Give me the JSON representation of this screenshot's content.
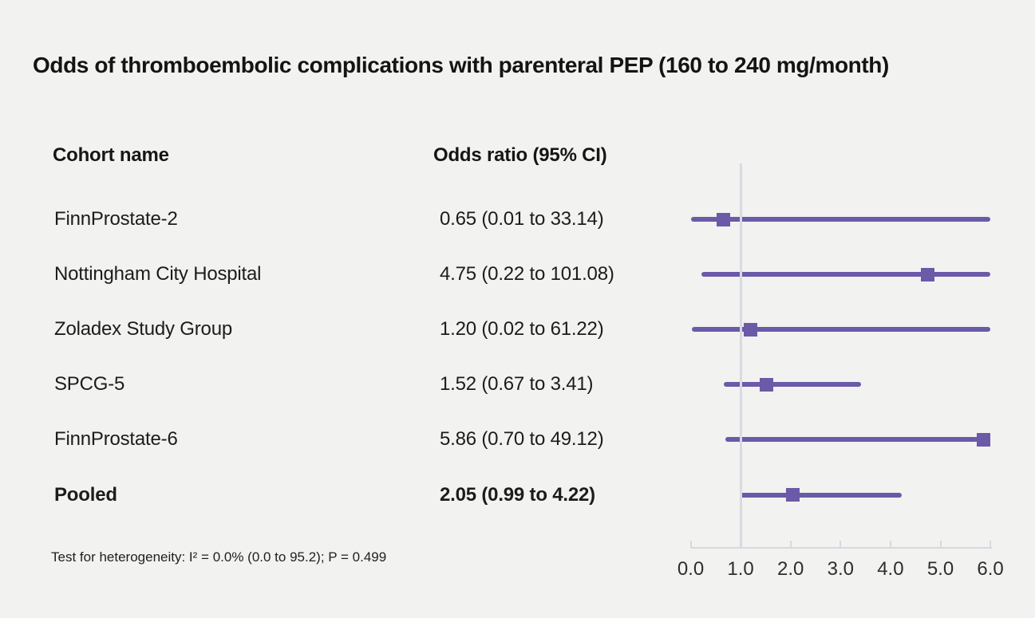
{
  "chart_data": {
    "type": "forest",
    "title": "Odds of thromboembolic complications with parenteral PEP (160 to 240 mg/month)",
    "columns": [
      "Cohort name",
      "Odds ratio (95% CI)"
    ],
    "rows": [
      {
        "label": "FinnProstate-2",
        "or_text": "0.65 (0.01 to 33.14)",
        "estimate": 0.65,
        "ci_low": 0.01,
        "ci_high": 33.14,
        "bold": false
      },
      {
        "label": "Nottingham City Hospital",
        "or_text": "4.75 (0.22 to 101.08)",
        "estimate": 4.75,
        "ci_low": 0.22,
        "ci_high": 101.08,
        "bold": false
      },
      {
        "label": "Zoladex Study Group",
        "or_text": "1.20 (0.02 to 61.22)",
        "estimate": 1.2,
        "ci_low": 0.02,
        "ci_high": 61.22,
        "bold": false
      },
      {
        "label": "SPCG-5",
        "or_text": "1.52 (0.67 to 3.41)",
        "estimate": 1.52,
        "ci_low": 0.67,
        "ci_high": 3.41,
        "bold": false
      },
      {
        "label": "FinnProstate-6",
        "or_text": "5.86 (0.70 to 49.12)",
        "estimate": 5.86,
        "ci_low": 0.7,
        "ci_high": 49.12,
        "bold": false
      },
      {
        "label": "Pooled",
        "or_text": "2.05 (0.99 to 4.22)",
        "estimate": 2.05,
        "ci_low": 0.99,
        "ci_high": 4.22,
        "bold": true
      }
    ],
    "xlim": [
      0.0,
      6.0
    ],
    "xtick_labels": [
      "0.0",
      "1.0",
      "2.0",
      "3.0",
      "4.0",
      "5.0",
      "6.0"
    ],
    "reference_value": 1.0,
    "footnote": "Test for heterogeneity: I² = 0.0% (0.0 to 95.2); P = 0.499",
    "colors": {
      "marker": "#6b5aa7",
      "ci_line": "#6b5aa7",
      "reference_line": "#d8dbe1",
      "axis": "#d6d9de",
      "background": "#f2f2f1"
    },
    "legend": null,
    "grid": false
  }
}
